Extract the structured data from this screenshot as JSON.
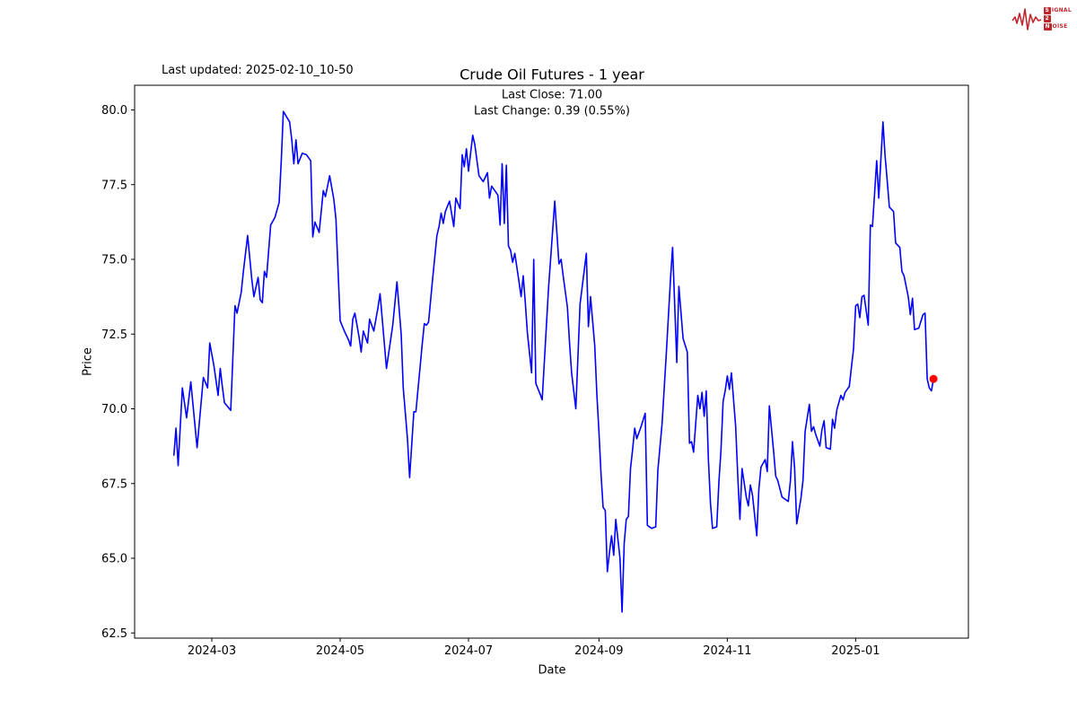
{
  "header": {
    "last_updated": "Last updated: 2025-02-10_10-50"
  },
  "logo": {
    "line1_boxed": "S",
    "line1_rest": "IGNAL",
    "line2_boxed": "2",
    "line3_boxed": "N",
    "line3_rest": "OISE",
    "color": "#c0272d"
  },
  "chart_data": {
    "type": "line",
    "title": "Crude Oil Futures - 1 year",
    "last_close_line": "Last Close: 71.00",
    "last_change_line": "Last Change: 0.39 (0.55%)",
    "last_close": 71.0,
    "last_change": 0.39,
    "last_change_pct": 0.55,
    "xlabel": "Date",
    "ylabel": "Price",
    "ylim": [
      62.5,
      80.0
    ],
    "grid": false,
    "line_color": "#0000ff",
    "marker_color": "#ff0000",
    "y_ticks": [
      62.5,
      65.0,
      67.5,
      70.0,
      72.5,
      75.0,
      77.5,
      80.0
    ],
    "x_ticks": [
      {
        "label": "2024-03",
        "date": "2024-03-01"
      },
      {
        "label": "2024-05",
        "date": "2024-05-01"
      },
      {
        "label": "2024-07",
        "date": "2024-07-01"
      },
      {
        "label": "2024-09",
        "date": "2024-09-01"
      },
      {
        "label": "2024-11",
        "date": "2024-11-01"
      },
      {
        "label": "2025-01",
        "date": "2025-01-01"
      }
    ],
    "points": [
      [
        "2024-02-12",
        68.45
      ],
      [
        "2024-02-13",
        69.35
      ],
      [
        "2024-02-14",
        68.1
      ],
      [
        "2024-02-16",
        70.7
      ],
      [
        "2024-02-18",
        69.7
      ],
      [
        "2024-02-20",
        70.9
      ],
      [
        "2024-02-23",
        68.7
      ],
      [
        "2024-02-26",
        71.05
      ],
      [
        "2024-02-28",
        70.7
      ],
      [
        "2024-02-29",
        72.2
      ],
      [
        "2024-03-02",
        71.45
      ],
      [
        "2024-03-04",
        70.45
      ],
      [
        "2024-03-05",
        71.35
      ],
      [
        "2024-03-06",
        70.75
      ],
      [
        "2024-03-07",
        70.2
      ],
      [
        "2024-03-10",
        69.95
      ],
      [
        "2024-03-12",
        73.45
      ],
      [
        "2024-03-13",
        73.2
      ],
      [
        "2024-03-15",
        73.9
      ],
      [
        "2024-03-16",
        74.6
      ],
      [
        "2024-03-18",
        75.8
      ],
      [
        "2024-03-20",
        74.35
      ],
      [
        "2024-03-21",
        73.75
      ],
      [
        "2024-03-23",
        74.4
      ],
      [
        "2024-03-24",
        73.65
      ],
      [
        "2024-03-25",
        73.55
      ],
      [
        "2024-03-26",
        74.6
      ],
      [
        "2024-03-27",
        74.4
      ],
      [
        "2024-03-29",
        76.15
      ],
      [
        "2024-03-31",
        76.4
      ],
      [
        "2024-04-02",
        76.9
      ],
      [
        "2024-04-03",
        78.3
      ],
      [
        "2024-04-04",
        79.95
      ],
      [
        "2024-04-07",
        79.6
      ],
      [
        "2024-04-08",
        79.0
      ],
      [
        "2024-04-09",
        78.2
      ],
      [
        "2024-04-10",
        79.0
      ],
      [
        "2024-04-11",
        78.2
      ],
      [
        "2024-04-13",
        78.55
      ],
      [
        "2024-04-15",
        78.5
      ],
      [
        "2024-04-17",
        78.3
      ],
      [
        "2024-04-18",
        75.75
      ],
      [
        "2024-04-19",
        76.25
      ],
      [
        "2024-04-21",
        75.9
      ],
      [
        "2024-04-23",
        77.3
      ],
      [
        "2024-04-24",
        77.1
      ],
      [
        "2024-04-26",
        77.8
      ],
      [
        "2024-04-28",
        77.0
      ],
      [
        "2024-04-29",
        76.35
      ],
      [
        "2024-04-30",
        74.6
      ],
      [
        "2024-05-01",
        72.95
      ],
      [
        "2024-05-03",
        72.6
      ],
      [
        "2024-05-05",
        72.3
      ],
      [
        "2024-05-06",
        72.1
      ],
      [
        "2024-05-07",
        73.0
      ],
      [
        "2024-05-08",
        73.2
      ],
      [
        "2024-05-10",
        72.4
      ],
      [
        "2024-05-11",
        71.9
      ],
      [
        "2024-05-12",
        72.6
      ],
      [
        "2024-05-14",
        72.2
      ],
      [
        "2024-05-15",
        73.0
      ],
      [
        "2024-05-17",
        72.6
      ],
      [
        "2024-05-19",
        73.4
      ],
      [
        "2024-05-20",
        73.85
      ],
      [
        "2024-05-23",
        71.35
      ],
      [
        "2024-05-26",
        72.8
      ],
      [
        "2024-05-28",
        74.25
      ],
      [
        "2024-05-30",
        72.5
      ],
      [
        "2024-05-31",
        70.7
      ],
      [
        "2024-06-02",
        69.0
      ],
      [
        "2024-06-03",
        67.7
      ],
      [
        "2024-06-05",
        69.9
      ],
      [
        "2024-06-06",
        69.9
      ],
      [
        "2024-06-09",
        72.15
      ],
      [
        "2024-06-10",
        72.85
      ],
      [
        "2024-06-11",
        72.8
      ],
      [
        "2024-06-12",
        72.9
      ],
      [
        "2024-06-14",
        74.4
      ],
      [
        "2024-06-16",
        75.8
      ],
      [
        "2024-06-17",
        76.1
      ],
      [
        "2024-06-18",
        76.55
      ],
      [
        "2024-06-19",
        76.2
      ],
      [
        "2024-06-20",
        76.6
      ],
      [
        "2024-06-22",
        76.95
      ],
      [
        "2024-06-24",
        76.1
      ],
      [
        "2024-06-25",
        77.05
      ],
      [
        "2024-06-27",
        76.7
      ],
      [
        "2024-06-28",
        78.5
      ],
      [
        "2024-06-29",
        78.1
      ],
      [
        "2024-06-30",
        78.7
      ],
      [
        "2024-07-01",
        77.95
      ],
      [
        "2024-07-03",
        79.15
      ],
      [
        "2024-07-04",
        78.85
      ],
      [
        "2024-07-06",
        77.8
      ],
      [
        "2024-07-08",
        77.6
      ],
      [
        "2024-07-10",
        77.9
      ],
      [
        "2024-07-11",
        77.05
      ],
      [
        "2024-07-12",
        77.45
      ],
      [
        "2024-07-15",
        77.15
      ],
      [
        "2024-07-16",
        76.15
      ],
      [
        "2024-07-17",
        78.2
      ],
      [
        "2024-07-18",
        76.2
      ],
      [
        "2024-07-19",
        78.15
      ],
      [
        "2024-07-20",
        75.45
      ],
      [
        "2024-07-21",
        75.3
      ],
      [
        "2024-07-22",
        74.9
      ],
      [
        "2024-07-23",
        75.2
      ],
      [
        "2024-07-25",
        74.25
      ],
      [
        "2024-07-26",
        73.75
      ],
      [
        "2024-07-27",
        74.45
      ],
      [
        "2024-07-28",
        73.55
      ],
      [
        "2024-07-29",
        72.55
      ],
      [
        "2024-07-31",
        71.2
      ],
      [
        "2024-08-01",
        75.0
      ],
      [
        "2024-08-02",
        70.85
      ],
      [
        "2024-08-04",
        70.5
      ],
      [
        "2024-08-05",
        70.3
      ],
      [
        "2024-08-08",
        74.0
      ],
      [
        "2024-08-11",
        76.95
      ],
      [
        "2024-08-13",
        74.85
      ],
      [
        "2024-08-14",
        75.0
      ],
      [
        "2024-08-15",
        74.45
      ],
      [
        "2024-08-17",
        73.4
      ],
      [
        "2024-08-18",
        72.25
      ],
      [
        "2024-08-19",
        71.2
      ],
      [
        "2024-08-21",
        70.0
      ],
      [
        "2024-08-23",
        73.5
      ],
      [
        "2024-08-26",
        75.2
      ],
      [
        "2024-08-27",
        72.75
      ],
      [
        "2024-08-28",
        73.75
      ],
      [
        "2024-08-30",
        72.1
      ],
      [
        "2024-08-31",
        70.5
      ],
      [
        "2024-09-01",
        69.2
      ],
      [
        "2024-09-02",
        67.8
      ],
      [
        "2024-09-03",
        66.7
      ],
      [
        "2024-09-04",
        66.6
      ],
      [
        "2024-09-05",
        64.55
      ],
      [
        "2024-09-06",
        65.2
      ],
      [
        "2024-09-07",
        65.75
      ],
      [
        "2024-09-08",
        65.1
      ],
      [
        "2024-09-09",
        66.3
      ],
      [
        "2024-09-11",
        65.0
      ],
      [
        "2024-09-12",
        63.2
      ],
      [
        "2024-09-13",
        65.5
      ],
      [
        "2024-09-14",
        66.3
      ],
      [
        "2024-09-15",
        66.4
      ],
      [
        "2024-09-16",
        68.0
      ],
      [
        "2024-09-17",
        68.65
      ],
      [
        "2024-09-18",
        69.35
      ],
      [
        "2024-09-19",
        69.0
      ],
      [
        "2024-09-21",
        69.4
      ],
      [
        "2024-09-23",
        69.85
      ],
      [
        "2024-09-24",
        66.1
      ],
      [
        "2024-09-26",
        66.0
      ],
      [
        "2024-09-28",
        66.05
      ],
      [
        "2024-09-29",
        67.95
      ],
      [
        "2024-10-01",
        69.5
      ],
      [
        "2024-10-03",
        71.85
      ],
      [
        "2024-10-05",
        74.35
      ],
      [
        "2024-10-06",
        75.4
      ],
      [
        "2024-10-08",
        71.55
      ],
      [
        "2024-10-09",
        74.1
      ],
      [
        "2024-10-11",
        72.35
      ],
      [
        "2024-10-13",
        71.9
      ],
      [
        "2024-10-14",
        68.85
      ],
      [
        "2024-10-15",
        68.9
      ],
      [
        "2024-10-16",
        68.55
      ],
      [
        "2024-10-18",
        70.45
      ],
      [
        "2024-10-19",
        70.0
      ],
      [
        "2024-10-20",
        70.55
      ],
      [
        "2024-10-21",
        69.75
      ],
      [
        "2024-10-22",
        70.6
      ],
      [
        "2024-10-23",
        68.3
      ],
      [
        "2024-10-24",
        66.85
      ],
      [
        "2024-10-25",
        66.0
      ],
      [
        "2024-10-27",
        66.05
      ],
      [
        "2024-10-28",
        67.55
      ],
      [
        "2024-10-29",
        68.6
      ],
      [
        "2024-10-30",
        70.25
      ],
      [
        "2024-10-31",
        70.6
      ],
      [
        "2024-11-01",
        71.1
      ],
      [
        "2024-11-02",
        70.65
      ],
      [
        "2024-11-03",
        71.2
      ],
      [
        "2024-11-05",
        69.4
      ],
      [
        "2024-11-06",
        67.7
      ],
      [
        "2024-11-07",
        66.3
      ],
      [
        "2024-11-08",
        68.0
      ],
      [
        "2024-11-10",
        67.05
      ],
      [
        "2024-11-11",
        66.75
      ],
      [
        "2024-11-12",
        67.45
      ],
      [
        "2024-11-13",
        67.1
      ],
      [
        "2024-11-15",
        65.75
      ],
      [
        "2024-11-16",
        67.3
      ],
      [
        "2024-11-17",
        68.05
      ],
      [
        "2024-11-19",
        68.3
      ],
      [
        "2024-11-20",
        67.9
      ],
      [
        "2024-11-21",
        70.1
      ],
      [
        "2024-11-23",
        68.6
      ],
      [
        "2024-11-24",
        67.75
      ],
      [
        "2024-11-25",
        67.6
      ],
      [
        "2024-11-27",
        67.05
      ],
      [
        "2024-11-28",
        67.0
      ],
      [
        "2024-11-30",
        66.9
      ],
      [
        "2024-12-01",
        67.6
      ],
      [
        "2024-12-02",
        68.9
      ],
      [
        "2024-12-03",
        68.0
      ],
      [
        "2024-12-04",
        66.15
      ],
      [
        "2024-12-06",
        67.0
      ],
      [
        "2024-12-07",
        67.6
      ],
      [
        "2024-12-08",
        69.25
      ],
      [
        "2024-12-10",
        70.15
      ],
      [
        "2024-12-11",
        69.25
      ],
      [
        "2024-12-12",
        69.4
      ],
      [
        "2024-12-13",
        69.15
      ],
      [
        "2024-12-15",
        68.75
      ],
      [
        "2024-12-16",
        69.3
      ],
      [
        "2024-12-17",
        69.6
      ],
      [
        "2024-12-18",
        68.7
      ],
      [
        "2024-12-20",
        68.65
      ],
      [
        "2024-12-21",
        69.65
      ],
      [
        "2024-12-22",
        69.35
      ],
      [
        "2024-12-23",
        69.95
      ],
      [
        "2024-12-25",
        70.45
      ],
      [
        "2024-12-26",
        70.3
      ],
      [
        "2024-12-27",
        70.55
      ],
      [
        "2024-12-29",
        70.75
      ],
      [
        "2024-12-30",
        71.4
      ],
      [
        "2024-12-31",
        72.0
      ],
      [
        "2025-01-01",
        73.45
      ],
      [
        "2025-01-02",
        73.5
      ],
      [
        "2025-01-03",
        73.05
      ],
      [
        "2025-01-04",
        73.75
      ],
      [
        "2025-01-05",
        73.8
      ],
      [
        "2025-01-07",
        72.8
      ],
      [
        "2025-01-08",
        76.15
      ],
      [
        "2025-01-09",
        76.1
      ],
      [
        "2025-01-11",
        78.3
      ],
      [
        "2025-01-12",
        77.05
      ],
      [
        "2025-01-14",
        79.6
      ],
      [
        "2025-01-15",
        78.45
      ],
      [
        "2025-01-16",
        77.65
      ],
      [
        "2025-01-17",
        76.75
      ],
      [
        "2025-01-19",
        76.6
      ],
      [
        "2025-01-20",
        75.55
      ],
      [
        "2025-01-22",
        75.4
      ],
      [
        "2025-01-23",
        74.6
      ],
      [
        "2025-01-24",
        74.45
      ],
      [
        "2025-01-26",
        73.75
      ],
      [
        "2025-01-27",
        73.15
      ],
      [
        "2025-01-28",
        73.7
      ],
      [
        "2025-01-29",
        72.65
      ],
      [
        "2025-01-31",
        72.7
      ],
      [
        "2025-02-02",
        73.15
      ],
      [
        "2025-02-03",
        73.2
      ],
      [
        "2025-02-04",
        71.0
      ],
      [
        "2025-02-05",
        70.7
      ],
      [
        "2025-02-06",
        70.6
      ],
      [
        "2025-02-07",
        71.0
      ]
    ]
  }
}
